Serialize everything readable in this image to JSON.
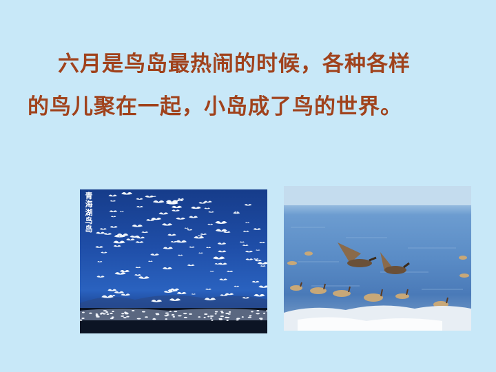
{
  "text": {
    "line1": "六月是鸟岛最热闹的时候，各种各样",
    "line2": "的鸟儿聚在一起，小岛成了鸟的世界。"
  },
  "left_photo": {
    "caption": "青海湖鸟岛"
  },
  "colors": {
    "background": "#c8e8f8",
    "text": "#a0421c"
  }
}
